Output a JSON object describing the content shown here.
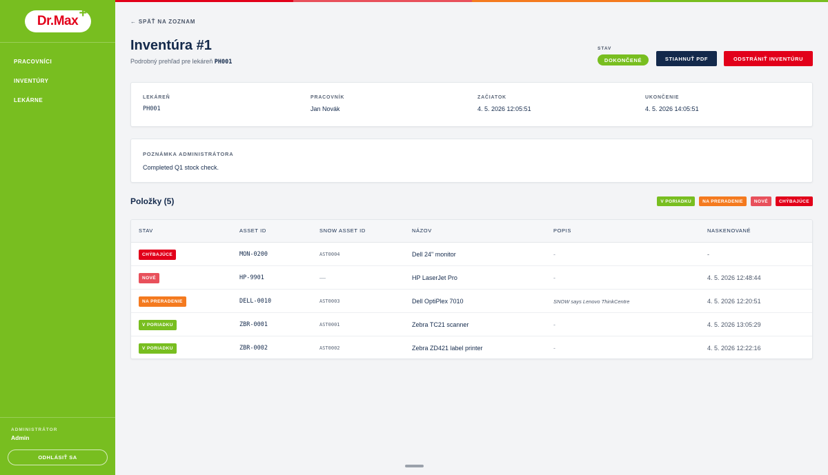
{
  "brand": {
    "logo_text": "Dr.Max",
    "logo_plus": "+"
  },
  "colors": {
    "brand_green": "#78be20",
    "brand_red": "#e2001a",
    "navy": "#13294b",
    "orange": "#f47a1f",
    "pink_red": "#e8505b"
  },
  "sidebar": {
    "items": [
      {
        "label": "PRACOVNÍCI"
      },
      {
        "label": "INVENTÚRY"
      },
      {
        "label": "LEKÁRNE"
      }
    ],
    "admin_role": "ADMINISTRÁTOR",
    "admin_name": "Admin",
    "logout_label": "ODHLÁSIŤ SA"
  },
  "header": {
    "back_label": "← SPÄŤ NA ZOZNAM",
    "title": "Inventúra #1",
    "subtitle_prefix": "Podrobný prehľad pre lekáreň",
    "subtitle_code": "PH001",
    "status_label": "STAV",
    "status_value": "DOKONČENÉ",
    "pdf_button": "STIAHNUŤ PDF",
    "delete_button": "ODSTRÁNIŤ INVENTÚRU"
  },
  "info": {
    "pharmacy_label": "LEKÁREŇ",
    "pharmacy_value": "PH001",
    "worker_label": "PRACOVNÍK",
    "worker_value": "Jan Novák",
    "start_label": "ZAČIATOK",
    "start_value": "4. 5. 2026 12:05:51",
    "end_label": "UKONČENIE",
    "end_value": "4. 5. 2026 14:05:51"
  },
  "note": {
    "label": "POZNÁMKA ADMINISTRÁTORA",
    "text": "Completed Q1 stock check."
  },
  "items": {
    "title": "Položky (5)",
    "legend": {
      "ok": "V PORIADKU",
      "move": "NA PRERADENIE",
      "new": "NOVÉ",
      "missing": "CHÝBAJÚCE"
    },
    "columns": {
      "status": "STAV",
      "asset_id": "ASSET ID",
      "snow_id": "SNOW ASSET ID",
      "name": "NÁZOV",
      "description": "POPIS",
      "scanned": "NASKENOVANÉ"
    },
    "rows": [
      {
        "status": "CHÝBAJÚCE",
        "asset_id": "MON-0200",
        "snow_id": "AST0004",
        "name": "Dell 24\" monitor",
        "description": "-",
        "scanned": "-"
      },
      {
        "status": "NOVÉ",
        "asset_id": "HP-9901",
        "snow_id": "—",
        "name": "HP LaserJet Pro",
        "description": "-",
        "scanned": "4. 5. 2026 12:48:44"
      },
      {
        "status": "NA PRERADENIE",
        "asset_id": "DELL-0010",
        "snow_id": "AST0003",
        "name": "Dell OptiPlex 7010",
        "description": "SNOW says Lenovo ThinkCentre",
        "scanned": "4. 5. 2026 12:20:51"
      },
      {
        "status": "V PORIADKU",
        "asset_id": "ZBR-0001",
        "snow_id": "AST0001",
        "name": "Zebra TC21 scanner",
        "description": "-",
        "scanned": "4. 5. 2026 13:05:29"
      },
      {
        "status": "V PORIADKU",
        "asset_id": "ZBR-0002",
        "snow_id": "AST0002",
        "name": "Zebra ZD421 label printer",
        "description": "-",
        "scanned": "4. 5. 2026 12:22:16"
      }
    ]
  }
}
